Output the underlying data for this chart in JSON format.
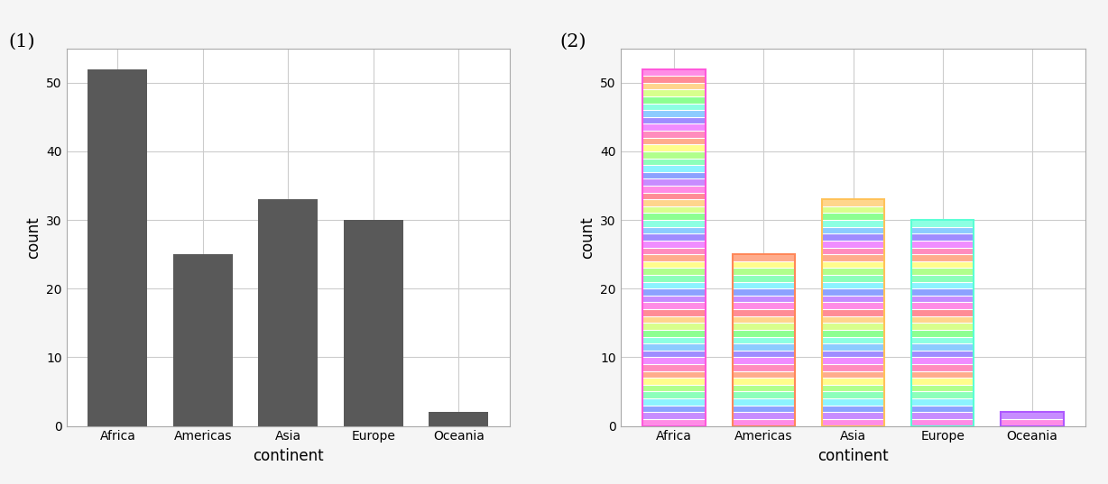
{
  "categories": [
    "Africa",
    "Americas",
    "Asia",
    "Europe",
    "Oceania"
  ],
  "counts": [
    52,
    25,
    33,
    30,
    2
  ],
  "bar_color_left": "#595959",
  "background_color": "#f5f5f5",
  "panel_bg": "#ffffff",
  "grid_color": "#cccccc",
  "axis_label_fontsize": 12,
  "tick_fontsize": 10,
  "title1": "(1)",
  "title2": "(2)",
  "ylabel": "count",
  "xlabel": "continent",
  "ylim": [
    0,
    55
  ],
  "yticks": [
    0,
    10,
    20,
    30,
    40,
    50
  ],
  "stripe_colors_bottom_to_top": [
    "#FF69B4",
    "#FF85C0",
    "#FF69B4",
    "#FF85C0",
    "#FF69B4",
    "#FF55AA",
    "#FF85C0",
    "#FF69B4",
    "#FF85C0",
    "#FF69B4",
    "#C87EFF",
    "#BF7FFF",
    "#AA88FF",
    "#9999FF",
    "#88AAFF",
    "#77BBFF",
    "#66CCFF",
    "#55DDFF",
    "#44DDEE",
    "#33DDCC",
    "#44DDAA",
    "#55DD88",
    "#66DD66",
    "#77DD44",
    "#88DD33",
    "#99DD22",
    "#AADD11",
    "#BBCC00",
    "#CCBB00",
    "#DDAA00",
    "#EEAA00",
    "#FFAA00",
    "#FFBB00",
    "#FFCC00",
    "#FFDD00",
    "#FFEE00",
    "#FFFF00",
    "#FFEE11",
    "#FFDD22",
    "#FFCC33",
    "#FFBB44",
    "#FFAA55",
    "#FF9966",
    "#FF8877",
    "#FF7788",
    "#FF6699",
    "#FF55AA",
    "#FF44BB",
    "#FF33CC",
    "#FF22DD",
    "#FF11EE",
    "#FF00FF"
  ],
  "border_color": "#FF6B6B"
}
